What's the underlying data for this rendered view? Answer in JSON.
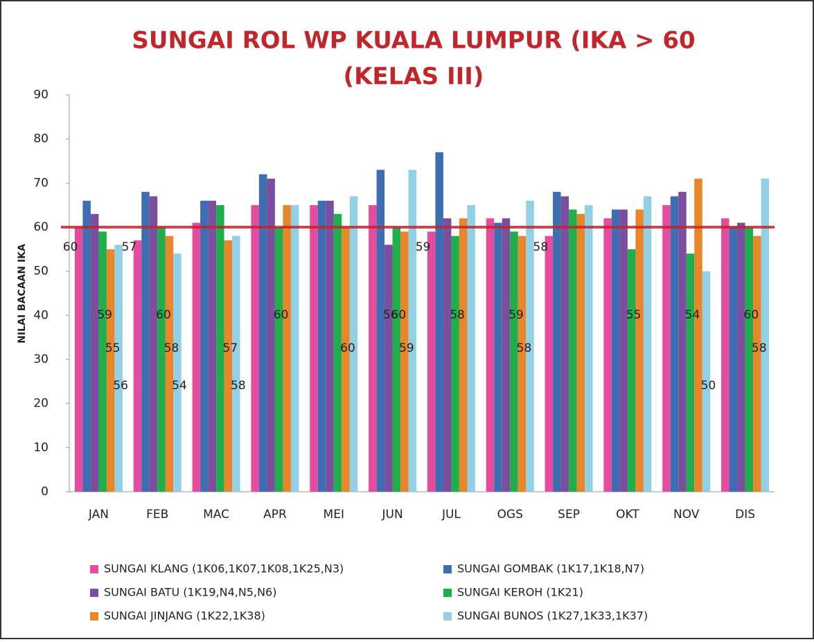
{
  "chart_data": {
    "type": "bar",
    "title": [
      "SUNGAI ROL WP KUALA LUMPUR (IKA > 60",
      "(KELAS III)"
    ],
    "y_label": "NILAI BACAAN IKA",
    "categories": [
      "JAN",
      "FEB",
      "MAC",
      "APR",
      "MEI",
      "JUN",
      "JUL",
      "OGS",
      "SEP",
      "OKT",
      "NOV",
      "DIS"
    ],
    "series": [
      {
        "name": "SUNGAI KLANG (1K06,1K07,1K08,1K25,N3)",
        "color": "#e54c9e",
        "values": [
          60,
          57,
          61,
          65,
          65,
          65,
          59,
          62,
          58,
          62,
          65,
          62
        ],
        "value_labels": [
          "60",
          "57",
          null,
          null,
          null,
          null,
          "59",
          null,
          "58",
          null,
          null,
          null
        ]
      },
      {
        "name": "SUNGAI GOMBAK (1K17,1K18,N7)",
        "color": "#3f6db1",
        "values": [
          66,
          68,
          66,
          72,
          66,
          73,
          77,
          61,
          68,
          64,
          67,
          60
        ],
        "value_labels": [
          null,
          null,
          null,
          null,
          null,
          null,
          null,
          null,
          null,
          null,
          null,
          null
        ]
      },
      {
        "name": "SUNGAI BATU (1K19,N4,N5,N6)",
        "color": "#7b4f9e",
        "values": [
          63,
          67,
          66,
          71,
          66,
          56,
          62,
          62,
          67,
          64,
          68,
          61
        ],
        "value_labels": [
          null,
          null,
          null,
          null,
          null,
          "56",
          null,
          null,
          null,
          null,
          null,
          null
        ]
      },
      {
        "name": "SUNGAI KEROH (1K21)",
        "color": "#1fae4c",
        "values": [
          59,
          60,
          65,
          60,
          63,
          60,
          58,
          59,
          64,
          55,
          54,
          60
        ],
        "value_labels": [
          "59",
          "60",
          null,
          "60",
          null,
          "60",
          "58",
          "59",
          null,
          "55",
          "54",
          "60"
        ]
      },
      {
        "name": "SUNGAI JINJANG (1K22,1K38)",
        "color": "#e8862b",
        "values": [
          55,
          58,
          57,
          65,
          60,
          59,
          62,
          58,
          63,
          64,
          71,
          58
        ],
        "value_labels": [
          "55",
          "58",
          "57",
          null,
          "60",
          "59",
          null,
          "58",
          null,
          null,
          null,
          "58"
        ]
      },
      {
        "name": "SUNGAI BUNOS (1K27,1K33,1K37)",
        "color": "#92d0e6",
        "values": [
          56,
          54,
          58,
          65,
          67,
          73,
          65,
          66,
          65,
          67,
          50,
          71
        ],
        "value_labels": [
          "56",
          "54",
          "58",
          null,
          null,
          null,
          null,
          null,
          null,
          null,
          "50",
          null
        ]
      }
    ],
    "ylim": [
      0,
      90
    ],
    "yticks": [
      0,
      10,
      20,
      30,
      40,
      50,
      60,
      70,
      80,
      90
    ],
    "reference_line": {
      "value": 60,
      "color": "#c0272d"
    },
    "legend": "bottom"
  }
}
